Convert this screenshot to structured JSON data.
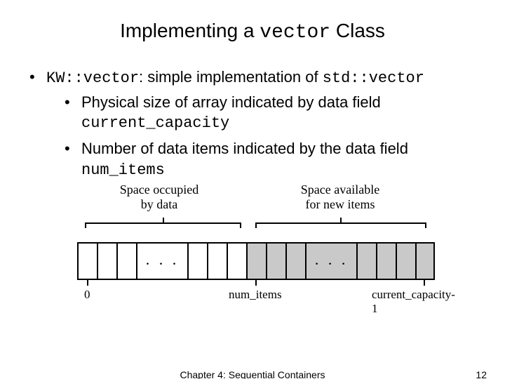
{
  "title": {
    "pre": "Implementing a ",
    "code": "vector",
    "post": " Class"
  },
  "bullets": {
    "main": {
      "code1": "KW::vector",
      "mid": ": simple implementation of ",
      "code2": "std::vector"
    },
    "sub1": {
      "text": "Physical size of array indicated by data field ",
      "code": "current_capacity"
    },
    "sub2": {
      "text": "Number of data items indicated by the data field ",
      "code": "num_items"
    }
  },
  "diagram": {
    "occupied_label": "Space occupied\nby data",
    "available_label": "Space available\nfor new items",
    "dots": ". . .",
    "zero_label": "0",
    "num_items_label": "num_items",
    "capacity_label": "current_capacity-1",
    "colors": {
      "data_cell": "#ffffff",
      "avail_cell": "#c9c9c9",
      "line": "#000000"
    }
  },
  "footer": {
    "chapter": "Chapter 4: Sequential Containers",
    "page": "12"
  }
}
